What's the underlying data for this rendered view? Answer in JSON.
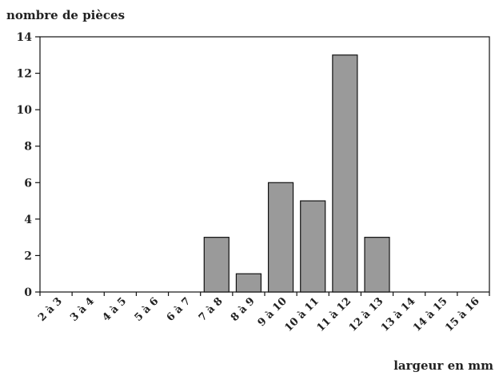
{
  "chart_data": {
    "type": "bar",
    "title": "",
    "ylabel": "nombre de pièces",
    "xlabel": "largeur en mm",
    "categories": [
      "2 à 3",
      "3 à 4",
      "4 à 5",
      "5 à 6",
      "6 à 7",
      "7 à 8",
      "8 à 9",
      "9 à 10",
      "10 à 11",
      "11 à 12",
      "12 à 13",
      "13 à 14",
      "14 à 15",
      "15 à 16"
    ],
    "values": [
      0,
      0,
      0,
      0,
      0,
      3,
      1,
      6,
      5,
      13,
      3,
      0,
      0,
      0
    ],
    "ylim": [
      0,
      14
    ],
    "yticks": [
      0,
      2,
      4,
      6,
      8,
      10,
      12,
      14
    ],
    "grid": false,
    "legend": "none",
    "colors": {
      "bar": "#9a9a9a",
      "bar_stroke": "#111111",
      "axis": "#111111",
      "text": "#222222"
    }
  }
}
